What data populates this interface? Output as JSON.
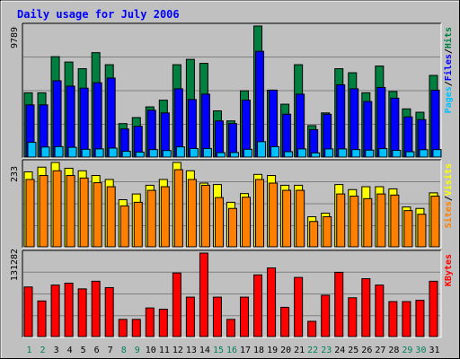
{
  "chart_data": {
    "type": "bar",
    "title": "Daily usage for July 2006",
    "categories": [
      "1",
      "2",
      "3",
      "4",
      "5",
      "6",
      "7",
      "8",
      "9",
      "10",
      "11",
      "12",
      "13",
      "14",
      "15",
      "16",
      "17",
      "18",
      "19",
      "20",
      "21",
      "22",
      "23",
      "24",
      "25",
      "26",
      "27",
      "28",
      "29",
      "30",
      "31"
    ],
    "weekend_days": [
      "1",
      "2",
      "8",
      "9",
      "15",
      "16",
      "22",
      "23",
      "29",
      "30"
    ],
    "panels": [
      {
        "id": "hits",
        "max_label": "9789",
        "ymax": 9789,
        "legend": [
          {
            "text": "Pages",
            "color": "#00c0ff"
          },
          {
            "text": "/",
            "color": "#000000"
          },
          {
            "text": "Files",
            "color": "#0000ff"
          },
          {
            "text": "/",
            "color": "#000000"
          },
          {
            "text": "Hits",
            "color": "#008040"
          }
        ],
        "series": [
          {
            "name": "Hits",
            "color": "#008040",
            "values": [
              4800,
              4800,
              7500,
              7100,
              6600,
              7800,
              6900,
              2500,
              2950,
              3750,
              4250,
              6900,
              7300,
              7000,
              3450,
              2700,
              4950,
              9789,
              5000,
              3950,
              6900,
              2350,
              3300,
              6600,
              6300,
              4800,
              6800,
              4900,
              3600,
              3350,
              6100
            ]
          },
          {
            "name": "Files",
            "color": "#0000ff",
            "values": [
              3900,
              3900,
              5700,
              5300,
              5150,
              5550,
              5900,
              2100,
              2300,
              3500,
              3300,
              5100,
              4300,
              4700,
              2700,
              2500,
              4250,
              7900,
              5000,
              3200,
              4700,
              2050,
              3200,
              5400,
              5100,
              4150,
              5200,
              4400,
              3000,
              2800,
              5000
            ]
          },
          {
            "name": "Pages",
            "color": "#00c0ff",
            "values": [
              1100,
              750,
              780,
              730,
              580,
              610,
              670,
              430,
              370,
              560,
              490,
              760,
              640,
              640,
              330,
              340,
              580,
              1150,
              780,
              400,
              610,
              310,
              610,
              610,
              560,
              520,
              630,
              500,
              400,
              550,
              560
            ]
          }
        ]
      },
      {
        "id": "visits",
        "max_label": "233",
        "ymax": 233,
        "legend": [
          {
            "text": "Sites",
            "color": "#ff8000"
          },
          {
            "text": "/",
            "color": "#000000"
          },
          {
            "text": "Visits",
            "color": "#ffff00"
          }
        ],
        "series": [
          {
            "name": "Visits",
            "color": "#ffff00",
            "values": [
              207,
              220,
              233,
              217,
              210,
              197,
              186,
              130,
              146,
              170,
              186,
              233,
              210,
              176,
              172,
              123,
              147,
              200,
              197,
              170,
              170,
              83,
              93,
              172,
              158,
              166,
              166,
              160,
              110,
              106,
              149
            ]
          },
          {
            "name": "Sites",
            "color": "#ff8000",
            "values": [
              186,
              197,
              210,
              197,
              190,
              177,
              166,
              113,
              123,
              156,
              166,
              213,
              186,
              170,
              136,
              106,
              137,
              186,
              176,
              156,
              156,
              70,
              83,
              146,
              140,
              133,
              146,
              143,
              100,
              90,
              140
            ]
          }
        ]
      },
      {
        "id": "kbytes",
        "max_label": "131282",
        "ymax": 131282,
        "legend": [
          {
            "text": "KBytes",
            "color": "#ff0000"
          }
        ],
        "series": [
          {
            "name": "KBytes",
            "color": "#ff0000",
            "values": [
              78000,
              56000,
              81000,
              84000,
              75000,
              87000,
              77000,
              27000,
              27000,
              45000,
              43000,
              100000,
              62000,
              131282,
              62000,
              27000,
              62000,
              97000,
              108000,
              46000,
              93000,
              24000,
              65000,
              101000,
              61000,
              91000,
              81000,
              55000,
              55000,
              57000,
              87000
            ]
          }
        ]
      }
    ]
  }
}
